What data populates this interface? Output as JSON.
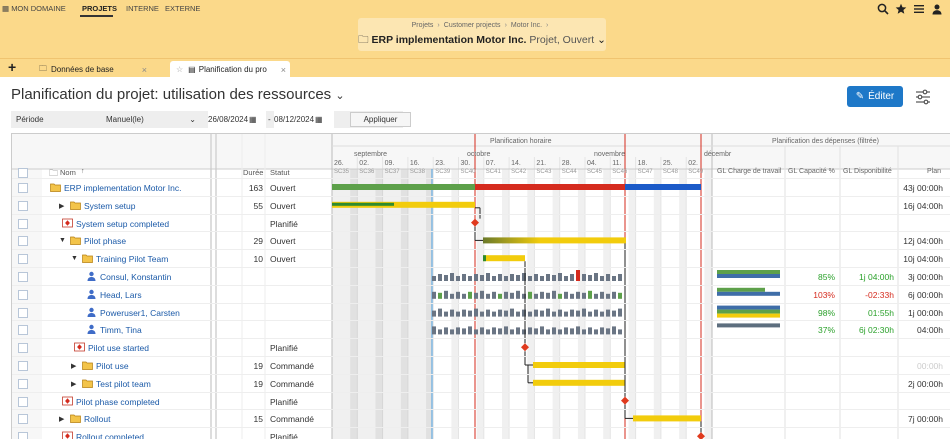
{
  "nav": {
    "items": [
      "MON DOMAINE",
      "PROJETS",
      "INTERNE",
      "EXTERNE"
    ],
    "active": "PROJETS"
  },
  "breadcrumb": {
    "items": [
      "Projets",
      "Customer projects",
      "Motor Inc."
    ],
    "project": "ERP implementation Motor Inc.",
    "project_sub": "Projet, Ouvert"
  },
  "tabs": {
    "add": "+",
    "items": [
      {
        "label": "Données de base",
        "close": "×"
      },
      {
        "label": "Planification du pro",
        "close": "×"
      }
    ]
  },
  "page": {
    "title": "Planification du projet: utilisation des ressources",
    "edit_label": "Éditer"
  },
  "filter": {
    "label": "Période",
    "mode": "Manuel(le)",
    "from": "26/08/2024",
    "to": "08/12/2024",
    "dash": "-",
    "apply": "Appliquer"
  },
  "grid": {
    "headers": {
      "name": "Nom",
      "duration": "Durée",
      "status": "Statut",
      "hourly": "Planification horaire",
      "expense": "Planification des dépenses (filtrée)",
      "workload": "GL Charge de travail",
      "capacity": "GL Capacité %",
      "availability": "GL Disponibilité",
      "plan": "Plan"
    },
    "months": [
      "septembre",
      "octobre",
      "novembre",
      "décembr"
    ],
    "days": [
      "26.",
      "02.",
      "09.",
      "16.",
      "23.",
      "30.",
      "07.",
      "14.",
      "21.",
      "28.",
      "04.",
      "11.",
      "18.",
      "25.",
      "02."
    ],
    "weeks": [
      "SC35",
      "SC36",
      "SC37",
      "SC38",
      "SC39",
      "SC40",
      "SC41",
      "SC42",
      "SC43",
      "SC44",
      "SC45",
      "SC46",
      "SC47",
      "SC48",
      "SC49"
    ],
    "rows": [
      {
        "name": "ERP implementation Motor Inc.",
        "duration": "163",
        "status": "Ouvert",
        "plan": "43j 00:00h",
        "capacity": "",
        "availability": ""
      },
      {
        "name": "System setup",
        "duration": "55",
        "status": "Ouvert",
        "plan": "16j 04:00h",
        "capacity": "",
        "availability": ""
      },
      {
        "name": "System setup completed",
        "duration": "",
        "status": "Planifié",
        "plan": "",
        "capacity": "",
        "availability": ""
      },
      {
        "name": "Pilot phase",
        "duration": "29",
        "status": "Ouvert",
        "plan": "12j 04:00h",
        "capacity": "",
        "availability": ""
      },
      {
        "name": "Training Pilot Team",
        "duration": "10",
        "status": "Ouvert",
        "plan": "10j 04:00h",
        "capacity": "",
        "availability": ""
      },
      {
        "name": "Consul, Konstantin",
        "duration": "",
        "status": "",
        "plan": "3j 00:00h",
        "capacity": "85%",
        "availability": "1j 04:00h"
      },
      {
        "name": "Head, Lars",
        "duration": "",
        "status": "",
        "plan": "6j 00:00h",
        "capacity": "103%",
        "availability": "-02:33h"
      },
      {
        "name": "Poweruser1, Carsten",
        "duration": "",
        "status": "",
        "plan": "1j 00:00h",
        "capacity": "98%",
        "availability": "01:55h"
      },
      {
        "name": "Timm, Tina",
        "duration": "",
        "status": "",
        "plan": "04:00h",
        "capacity": "37%",
        "availability": "6j 02:30h"
      },
      {
        "name": "Pilot use started",
        "duration": "",
        "status": "Planifié",
        "plan": "",
        "capacity": "",
        "availability": ""
      },
      {
        "name": "Pilot use",
        "duration": "19",
        "status": "Commandé",
        "plan": "00:00h",
        "capacity": "",
        "availability": ""
      },
      {
        "name": "Test pilot team",
        "duration": "19",
        "status": "Commandé",
        "plan": "2j 00:00h",
        "capacity": "",
        "availability": ""
      },
      {
        "name": "Pilot phase completed",
        "duration": "",
        "status": "Planifié",
        "plan": "",
        "capacity": "",
        "availability": ""
      },
      {
        "name": "Rollout",
        "duration": "15",
        "status": "Commandé",
        "plan": "7j 00:00h",
        "capacity": "",
        "availability": ""
      },
      {
        "name": "Rollout completed",
        "duration": "",
        "status": "Planifié",
        "plan": "",
        "capacity": "",
        "availability": ""
      }
    ]
  },
  "colors": {
    "accent": "#1e78c8",
    "header_yellow": "#fbd98a",
    "bar_yellow": "#f2cc0c",
    "bar_green": "#5da04a",
    "bar_red": "#d52b1e",
    "bar_blue": "#1b5ac8",
    "milestone": "#e03a1e",
    "today_line": "#d52b1e"
  }
}
